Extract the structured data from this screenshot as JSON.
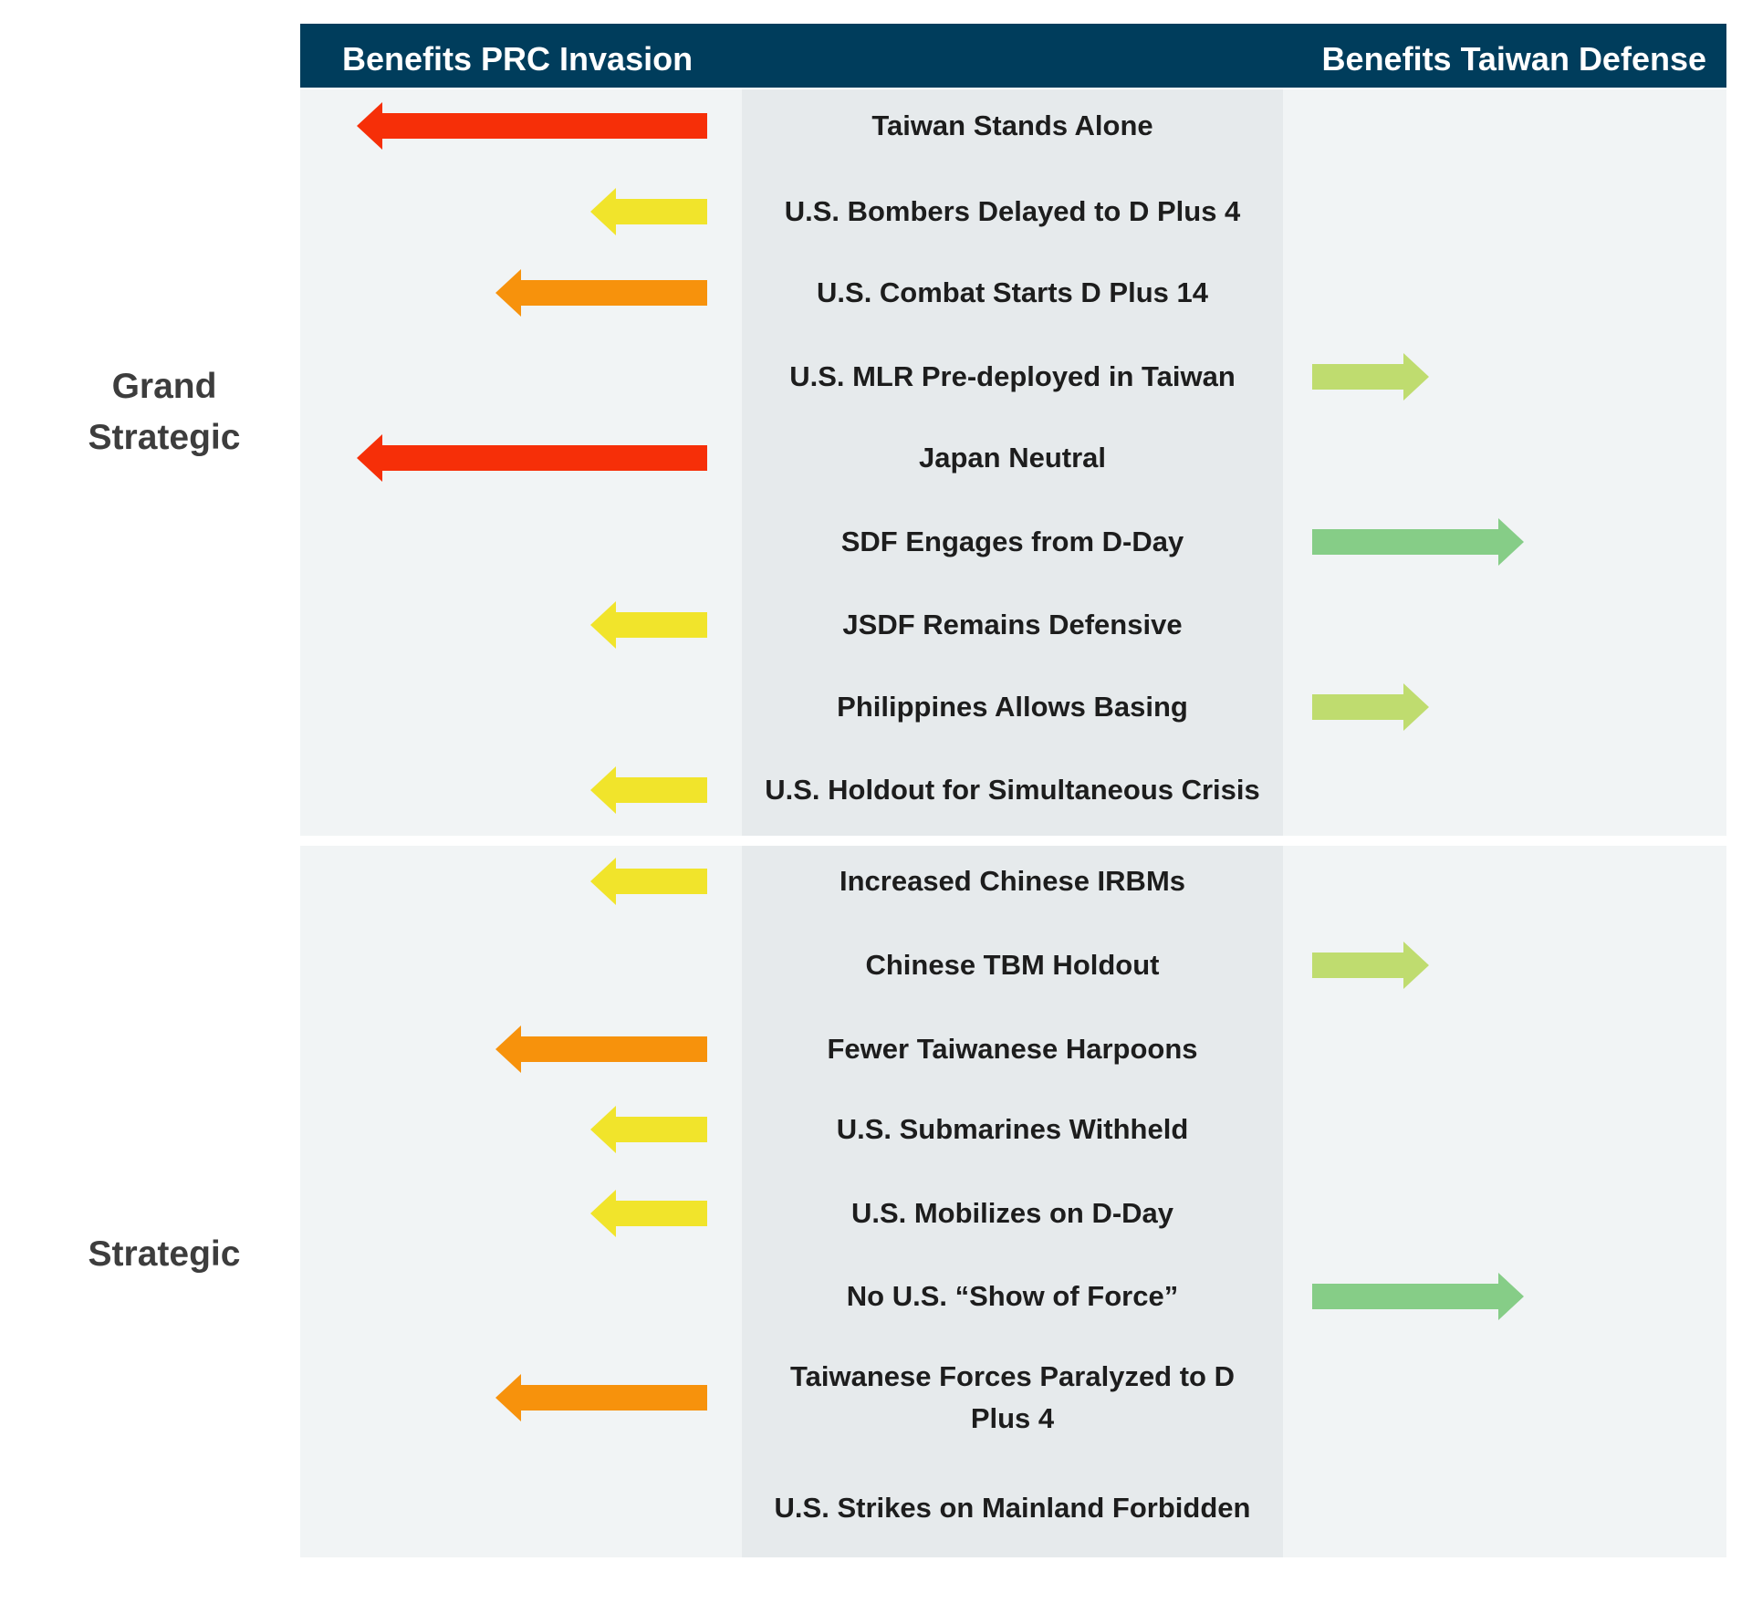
{
  "header": {
    "left_label": "Benefits PRC Invasion",
    "right_label": "Benefits Taiwan Defense",
    "color": "#003d5c"
  },
  "colors": {
    "red": "#f62f08",
    "orange": "#f7920c",
    "yellow": "#f1e42b",
    "light_green": "#bfdc6f",
    "green": "#86cd87",
    "panel": "#f1f4f5",
    "middle_column": "#e6eaec"
  },
  "sections": [
    {
      "label": "Grand Strategic",
      "rows": [
        {
          "label": "Taiwan Stands Alone",
          "direction": "left",
          "magnitude": 3,
          "color": "red"
        },
        {
          "label": "U.S. Bombers Delayed to D Plus 4",
          "direction": "left",
          "magnitude": 1,
          "color": "yellow"
        },
        {
          "label": "U.S. Combat Starts D Plus 14",
          "direction": "left",
          "magnitude": 2,
          "color": "orange"
        },
        {
          "label": "U.S. MLR Pre-deployed in Taiwan",
          "direction": "right",
          "magnitude": 1,
          "color": "light_green"
        },
        {
          "label": "Japan Neutral",
          "direction": "left",
          "magnitude": 3,
          "color": "red"
        },
        {
          "label": "SDF Engages from D-Day",
          "direction": "right",
          "magnitude": 2,
          "color": "green"
        },
        {
          "label": "JSDF Remains Defensive",
          "direction": "left",
          "magnitude": 1,
          "color": "yellow"
        },
        {
          "label": "Philippines Allows Basing",
          "direction": "right",
          "magnitude": 1,
          "color": "light_green"
        },
        {
          "label": "U.S. Holdout for Simultaneous Crisis",
          "direction": "left",
          "magnitude": 1,
          "color": "yellow"
        }
      ]
    },
    {
      "label": "Strategic",
      "rows": [
        {
          "label": "Increased Chinese IRBMs",
          "direction": "left",
          "magnitude": 1,
          "color": "yellow"
        },
        {
          "label": "Chinese TBM Holdout",
          "direction": "right",
          "magnitude": 1,
          "color": "light_green"
        },
        {
          "label": "Fewer Taiwanese Harpoons",
          "direction": "left",
          "magnitude": 2,
          "color": "orange"
        },
        {
          "label": "U.S. Submarines Withheld",
          "direction": "left",
          "magnitude": 1,
          "color": "yellow"
        },
        {
          "label": "U.S. Mobilizes on D-Day",
          "direction": "left",
          "magnitude": 1,
          "color": "yellow"
        },
        {
          "label": "No U.S. “Show of Force”",
          "direction": "right",
          "magnitude": 2,
          "color": "green"
        },
        {
          "label": "Taiwanese Forces Paralyzed to D Plus 4",
          "direction": "left",
          "magnitude": 2,
          "color": "orange"
        },
        {
          "label": "U.S. Strikes on Mainland Forbidden",
          "direction": "none",
          "magnitude": 0,
          "color": ""
        }
      ]
    }
  ]
}
